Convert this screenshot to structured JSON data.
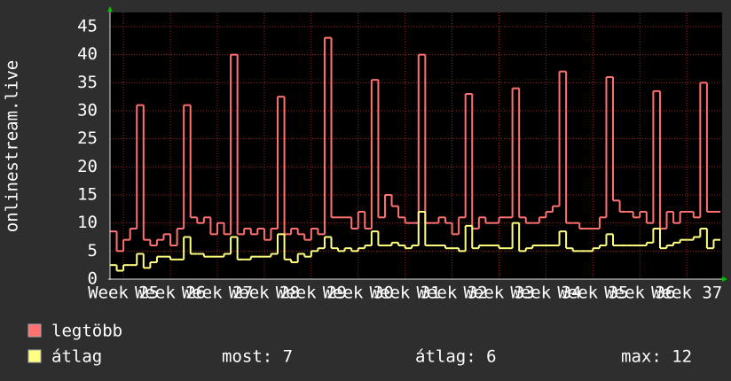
{
  "chart_data": {
    "type": "step",
    "ylabel": "onlinestream.live",
    "xlim": [
      0,
      91
    ],
    "xticks": [
      {
        "value": 2,
        "label": "Week 25"
      },
      {
        "value": 9,
        "label": "Week 26"
      },
      {
        "value": 16,
        "label": "Week 27"
      },
      {
        "value": 23,
        "label": "Week 28"
      },
      {
        "value": 30,
        "label": "Week 29"
      },
      {
        "value": 37,
        "label": "Week 30"
      },
      {
        "value": 44,
        "label": "Week 31"
      },
      {
        "value": 51,
        "label": "Week 32"
      },
      {
        "value": 58,
        "label": "Week 33"
      },
      {
        "value": 65,
        "label": "Week 34"
      },
      {
        "value": 72,
        "label": "Week 35"
      },
      {
        "value": 79,
        "label": "Week 36"
      },
      {
        "value": 86,
        "label": "Week 37"
      }
    ],
    "ylim": [
      0,
      45
    ],
    "yticks": [
      0,
      5,
      10,
      15,
      20,
      25,
      30,
      35,
      40,
      45
    ],
    "grid": true,
    "x": [
      0,
      1,
      2,
      3,
      4,
      5,
      6,
      7,
      8,
      9,
      10,
      11,
      12,
      13,
      14,
      15,
      16,
      17,
      18,
      19,
      20,
      21,
      22,
      23,
      24,
      25,
      26,
      27,
      28,
      29,
      30,
      31,
      32,
      33,
      34,
      35,
      36,
      37,
      38,
      39,
      40,
      41,
      42,
      43,
      44,
      45,
      46,
      47,
      48,
      49,
      50,
      51,
      52,
      53,
      54,
      55,
      56,
      57,
      58,
      59,
      60,
      61,
      62,
      63,
      64,
      65,
      66,
      67,
      68,
      69,
      70,
      71,
      72,
      73,
      74,
      75,
      76,
      77,
      78,
      79,
      80,
      81,
      82,
      83,
      84,
      85,
      86,
      87,
      88,
      89,
      90
    ],
    "series": [
      {
        "name": "legtöbb",
        "color": "#ff7070",
        "values": [
          8.5,
          5,
          7,
          9,
          31,
          7,
          6,
          7,
          8,
          6,
          9,
          31,
          11,
          10,
          11,
          8,
          10,
          8,
          40,
          8,
          9,
          8,
          9,
          7,
          9,
          32.5,
          8,
          9,
          8,
          7,
          9,
          8,
          43,
          11,
          11,
          11,
          9,
          12,
          9,
          35.5,
          11,
          15,
          13,
          11,
          10,
          10,
          40,
          10,
          10,
          11,
          10,
          8,
          11,
          33,
          9,
          11,
          10,
          10,
          11,
          11,
          34,
          11,
          10,
          10,
          11,
          12,
          13,
          37,
          10,
          10,
          9,
          9,
          9,
          11,
          36,
          14,
          12,
          12,
          11,
          12,
          10,
          33.5,
          9,
          12,
          10,
          12,
          12,
          11,
          35,
          12,
          12
        ]
      },
      {
        "name": "átlag",
        "color": "#ffff80",
        "values": [
          2.5,
          1.5,
          2.5,
          2.5,
          4.5,
          2,
          3,
          4,
          4,
          3.5,
          3.5,
          7.5,
          4.5,
          4.5,
          4,
          4,
          4,
          4.5,
          7.5,
          3.5,
          3.5,
          4,
          4,
          4,
          4.5,
          8,
          3.5,
          3,
          4.5,
          4,
          5,
          5.5,
          7.5,
          5.5,
          5,
          5.5,
          5,
          5.5,
          6,
          8.5,
          6,
          6,
          6.5,
          6,
          5.5,
          6,
          12,
          6,
          6,
          6,
          5.5,
          5.5,
          5,
          9.5,
          5.5,
          6,
          6,
          6,
          5.5,
          5.5,
          10,
          5,
          5.5,
          6,
          6,
          6,
          6,
          8.5,
          5.5,
          5,
          5,
          5,
          5.5,
          6,
          8,
          6,
          6,
          6,
          6,
          6,
          6.5,
          9,
          5.5,
          6,
          6.5,
          7,
          7,
          7.5,
          9,
          5.5,
          7
        ]
      }
    ],
    "stats": [
      "most: 7",
      "átlag: 6",
      "max: 12"
    ]
  }
}
